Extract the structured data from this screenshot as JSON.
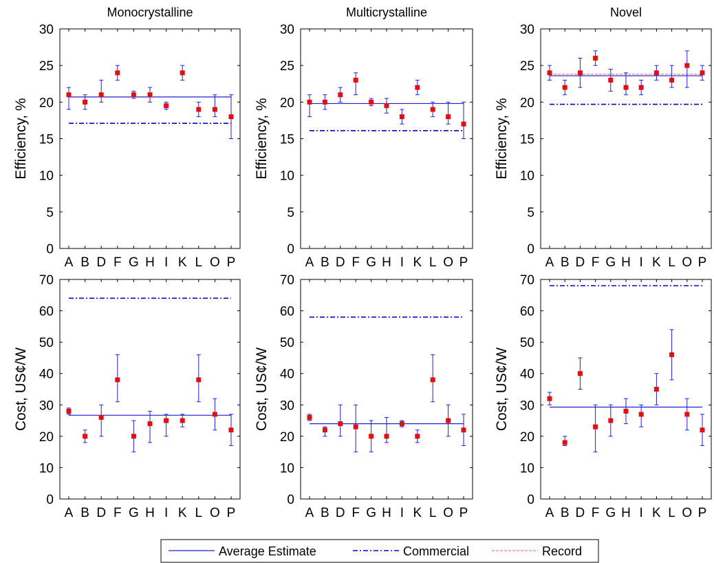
{
  "legend": {
    "entries": [
      {
        "label": "Average Estimate",
        "color": "#1f1fd6",
        "style": "solid"
      },
      {
        "label": "Commercial",
        "color": "#0000cc",
        "style": "dashdot"
      },
      {
        "label": "Record",
        "color": "#ff5a5a",
        "style": "dashed"
      }
    ],
    "placement": "bottom-center"
  },
  "colors": {
    "marker": "#e01010",
    "errorbar": "#1f1fd6",
    "axis": "#000000"
  },
  "chart_data": [
    {
      "type": "scatter",
      "title": "Monocrystalline",
      "xlabel": "",
      "ylabel": "Efficiency, %",
      "categories": [
        "A",
        "B",
        "D",
        "F",
        "G",
        "H",
        "I",
        "K",
        "L",
        "O",
        "P"
      ],
      "ylim": [
        0,
        30
      ],
      "yticks": [
        0,
        5,
        10,
        15,
        20,
        25,
        30
      ],
      "values": [
        21,
        20,
        21,
        24,
        21,
        21,
        19.5,
        24,
        19,
        19,
        18
      ],
      "err_low": [
        19,
        19,
        20,
        23,
        20.5,
        20,
        19,
        23,
        18,
        18,
        15
      ],
      "err_high": [
        22,
        21,
        23,
        25,
        21.5,
        22,
        20,
        25,
        20,
        21,
        21
      ],
      "average_estimate": 20.7,
      "commercial": 17.1,
      "record": null,
      "grid": false
    },
    {
      "type": "scatter",
      "title": "Multicrystalline",
      "xlabel": "",
      "ylabel": "Efficiency, %",
      "categories": [
        "A",
        "B",
        "D",
        "F",
        "G",
        "H",
        "I",
        "K",
        "L",
        "O",
        "P"
      ],
      "ylim": [
        0,
        30
      ],
      "yticks": [
        0,
        5,
        10,
        15,
        20,
        25,
        30
      ],
      "values": [
        20,
        20,
        21,
        23,
        20,
        19.5,
        18,
        22,
        19,
        18,
        17
      ],
      "err_low": [
        18,
        19,
        20,
        21,
        19.5,
        18.5,
        17,
        21,
        18,
        17,
        15
      ],
      "err_high": [
        21,
        21,
        22,
        24,
        20.5,
        20.5,
        19,
        23,
        20,
        20,
        20
      ],
      "average_estimate": 19.8,
      "commercial": 16.1,
      "record": null,
      "grid": false
    },
    {
      "type": "scatter",
      "title": "Novel",
      "xlabel": "",
      "ylabel": "Efficiency, %",
      "categories": [
        "A",
        "B",
        "D",
        "F",
        "G",
        "H",
        "I",
        "K",
        "L",
        "O",
        "P"
      ],
      "ylim": [
        0,
        30
      ],
      "yticks": [
        0,
        5,
        10,
        15,
        20,
        25,
        30
      ],
      "values": [
        24,
        22,
        24,
        26,
        23,
        22,
        22,
        24,
        23,
        25,
        24
      ],
      "err_low": [
        23,
        21,
        22,
        25,
        21.5,
        21,
        21,
        23,
        22,
        22,
        23
      ],
      "err_high": [
        25,
        23,
        26,
        27,
        24.5,
        24,
        23,
        25,
        25,
        27,
        25
      ],
      "average_estimate": 23.6,
      "commercial": 19.7,
      "record": 23.8,
      "grid": false
    },
    {
      "type": "scatter",
      "title": "",
      "xlabel": "",
      "ylabel": "Cost, US¢/W",
      "categories": [
        "A",
        "B",
        "D",
        "F",
        "G",
        "H",
        "I",
        "K",
        "L",
        "O",
        "P"
      ],
      "ylim": [
        0,
        70
      ],
      "yticks": [
        0,
        10,
        20,
        30,
        40,
        50,
        60,
        70
      ],
      "values": [
        28,
        20,
        26,
        38,
        20,
        24,
        25,
        25,
        38,
        27,
        22
      ],
      "err_low": [
        27,
        18,
        20,
        31,
        15,
        18,
        20,
        23,
        31,
        22,
        17
      ],
      "err_high": [
        29,
        22,
        30,
        46,
        25,
        28,
        27,
        27,
        46,
        32,
        27
      ],
      "average_estimate": 26.7,
      "commercial": 64,
      "record": null,
      "grid": false
    },
    {
      "type": "scatter",
      "title": "",
      "xlabel": "",
      "ylabel": "Cost, US¢/W",
      "categories": [
        "A",
        "B",
        "D",
        "F",
        "G",
        "H",
        "I",
        "K",
        "L",
        "O",
        "P"
      ],
      "ylim": [
        0,
        70
      ],
      "yticks": [
        0,
        10,
        20,
        30,
        40,
        50,
        60,
        70
      ],
      "values": [
        26,
        22,
        24,
        23,
        20,
        20,
        24,
        20,
        38,
        25,
        22
      ],
      "err_low": [
        25,
        20,
        20,
        15,
        15,
        18,
        23,
        18,
        31,
        20,
        17
      ],
      "err_high": [
        27,
        23,
        30,
        30,
        25,
        26,
        25,
        22,
        46,
        30,
        27
      ],
      "average_estimate": 24,
      "commercial": 58,
      "record": null,
      "grid": false
    },
    {
      "type": "scatter",
      "title": "",
      "xlabel": "",
      "ylabel": "Cost, US¢/W",
      "categories": [
        "A",
        "B",
        "D",
        "F",
        "G",
        "H",
        "I",
        "K",
        "L",
        "O",
        "P"
      ],
      "ylim": [
        0,
        70
      ],
      "yticks": [
        0,
        10,
        20,
        30,
        40,
        50,
        60,
        70
      ],
      "values": [
        32,
        18,
        40,
        23,
        25,
        28,
        27,
        35,
        46,
        27,
        22
      ],
      "err_low": [
        30,
        17,
        35,
        15,
        20,
        24,
        23,
        30,
        38,
        22,
        17
      ],
      "err_high": [
        34,
        20,
        45,
        30,
        30,
        32,
        30,
        40,
        54,
        32,
        27
      ],
      "average_estimate": 29.3,
      "commercial": 68,
      "record": null,
      "grid": false
    }
  ]
}
